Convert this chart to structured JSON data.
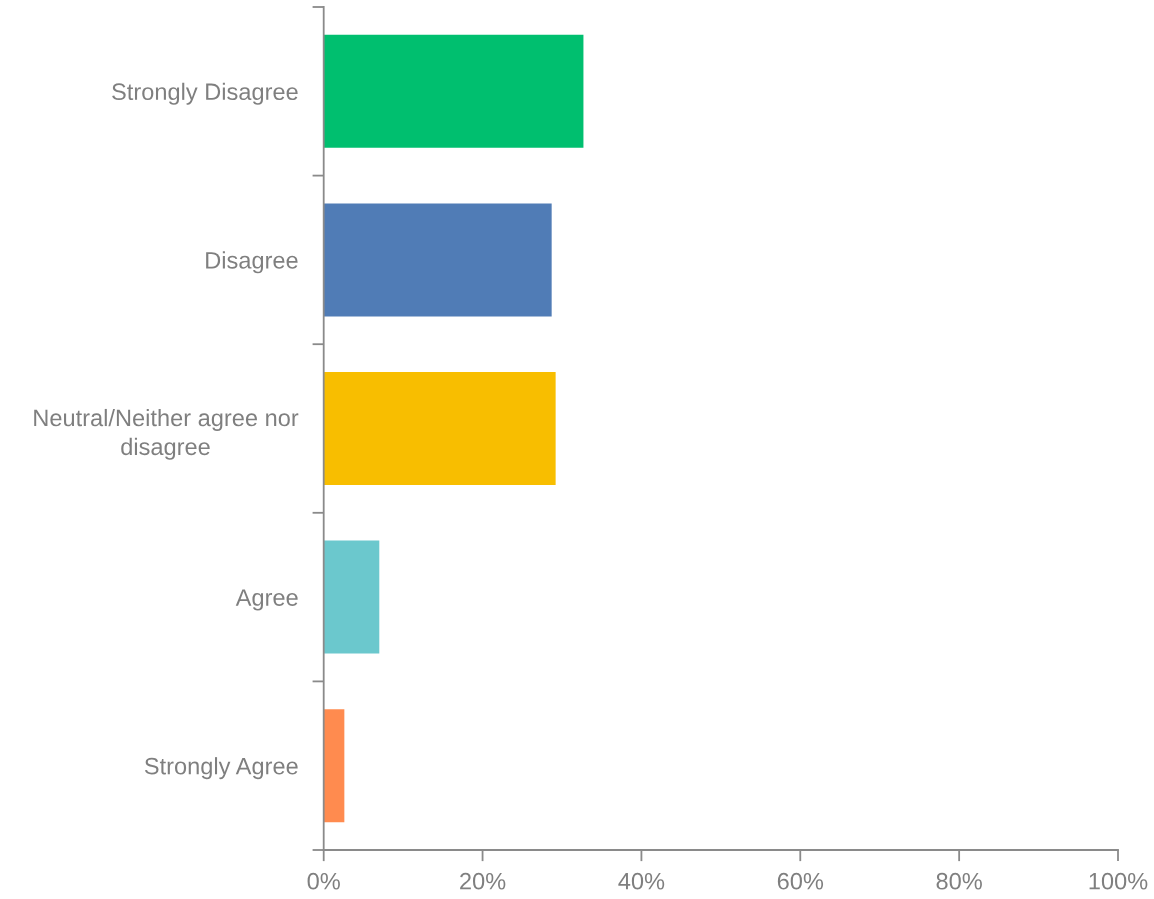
{
  "chart_data": {
    "type": "bar",
    "orientation": "horizontal",
    "categories": [
      "Strongly Disagree",
      "Disagree",
      "Neutral/Neither agree nor disagree",
      "Agree",
      "Strongly Agree"
    ],
    "values": [
      32.7,
      28.7,
      29.2,
      7.0,
      2.6
    ],
    "colors": [
      "#00bf6f",
      "#507cb6",
      "#f8be00",
      "#6bc8cd",
      "#ff8b4f"
    ],
    "xlim": [
      0,
      100
    ],
    "xticks": [
      {
        "value": 0,
        "label": "0%"
      },
      {
        "value": 20,
        "label": "20%"
      },
      {
        "value": 40,
        "label": "40%"
      },
      {
        "value": 60,
        "label": "60%"
      },
      {
        "value": 80,
        "label": "80%"
      },
      {
        "value": 100,
        "label": "100%"
      }
    ],
    "grid": false
  }
}
